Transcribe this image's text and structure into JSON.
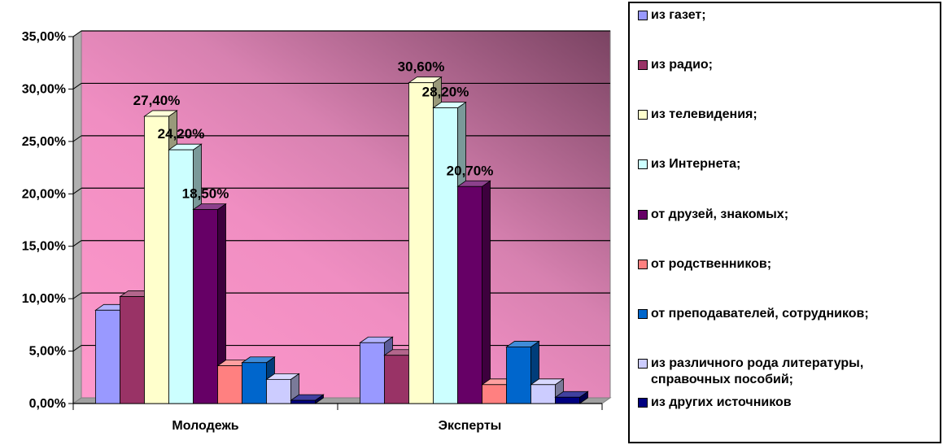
{
  "chart_data": {
    "type": "bar",
    "categories": [
      "Молодежь",
      "Эксперты"
    ],
    "y_ticks": [
      "0,00%",
      "5,00%",
      "10,00%",
      "15,00%",
      "20,00%",
      "25,00%",
      "30,00%",
      "35,00%"
    ],
    "ylim": [
      0,
      35
    ],
    "grid": true,
    "legend_position": "right",
    "series": [
      {
        "name": "из газет;",
        "values": [
          8.9,
          5.8
        ],
        "color": "#9999FF",
        "labels": [
          "",
          ""
        ]
      },
      {
        "name": "из радио;",
        "values": [
          10.2,
          4.6
        ],
        "color": "#993366",
        "labels": [
          "",
          ""
        ]
      },
      {
        "name": " из телевидения;",
        "values": [
          27.4,
          30.6
        ],
        "color": "#FFFFCC",
        "labels": [
          "27,40%",
          "30,60%"
        ]
      },
      {
        "name": "из Интернета;",
        "values": [
          24.2,
          28.2
        ],
        "color": "#CCFFFF",
        "labels": [
          "24,20%",
          "28,20%"
        ]
      },
      {
        "name": "от друзей, знакомых;",
        "values": [
          18.5,
          20.7
        ],
        "color": "#660066",
        "labels": [
          "18,50%",
          "20,70%"
        ]
      },
      {
        "name": "от родственников;",
        "values": [
          3.6,
          1.8
        ],
        "color": "#FF8080",
        "labels": [
          "",
          ""
        ]
      },
      {
        "name": "от преподавателей, сотрудников;",
        "values": [
          3.9,
          5.4
        ],
        "color": "#0066CC",
        "labels": [
          "",
          ""
        ]
      },
      {
        "name": "из различного рода литературы,\nсправочных пособий;",
        "values": [
          2.3,
          1.8
        ],
        "color": "#CCCCFF",
        "labels": [
          "",
          ""
        ]
      },
      {
        "name": "из других источников",
        "values": [
          0.3,
          0.6
        ],
        "color": "#000080",
        "labels": [
          "",
          ""
        ]
      }
    ]
  }
}
